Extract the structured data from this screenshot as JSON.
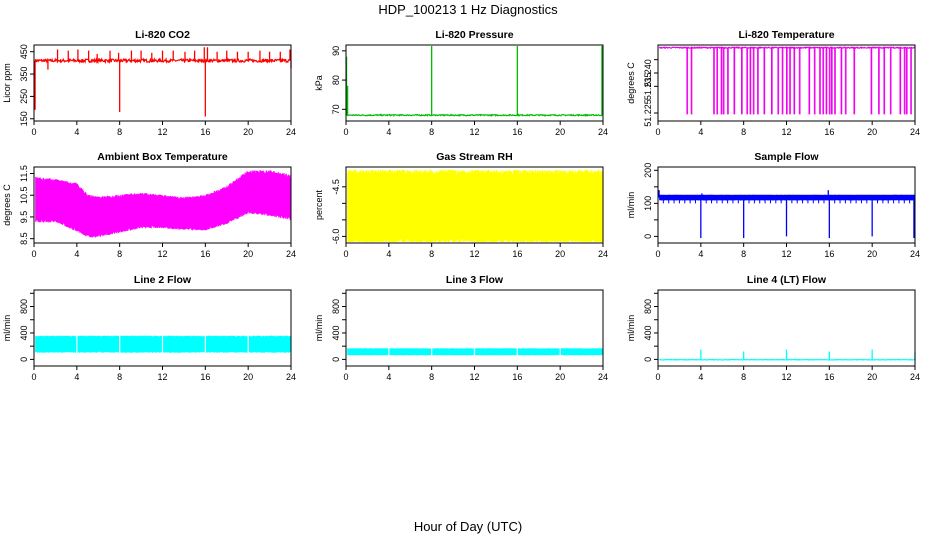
{
  "figure": {
    "title": "HDP_100213  1 Hz Diagnostics",
    "xlabel": "Hour of Day (UTC)"
  },
  "chart_data": [
    {
      "type": "line",
      "title": "Li-820 CO2",
      "ylabel": "Licor ppm",
      "color": "#ff0000",
      "xlim": [
        0,
        24
      ],
      "ylim": [
        140,
        480
      ],
      "xticks": [
        0,
        4,
        8,
        12,
        16,
        20,
        24
      ],
      "yticks": [
        150,
        250,
        350,
        450
      ],
      "baseline": 410,
      "noise": 7,
      "spikes": [
        [
          0.05,
          200
        ],
        [
          0.1,
          190
        ],
        [
          1.3,
          370
        ],
        [
          2.2,
          460
        ],
        [
          3.2,
          455
        ],
        [
          4.1,
          460
        ],
        [
          5.1,
          455
        ],
        [
          5.9,
          440
        ],
        [
          7.1,
          455
        ],
        [
          7.9,
          445
        ],
        [
          8.0,
          180
        ],
        [
          9.1,
          455
        ],
        [
          10.0,
          455
        ],
        [
          11.0,
          445
        ],
        [
          12.0,
          455
        ],
        [
          13.0,
          455
        ],
        [
          14.1,
          450
        ],
        [
          15.0,
          455
        ],
        [
          15.9,
          470
        ],
        [
          16.0,
          160
        ],
        [
          16.2,
          470
        ],
        [
          17.1,
          450
        ],
        [
          18.0,
          455
        ],
        [
          19.0,
          450
        ],
        [
          20.0,
          450
        ],
        [
          21.1,
          455
        ],
        [
          22.0,
          450
        ],
        [
          23.0,
          450
        ],
        [
          23.9,
          460
        ],
        [
          24.0,
          375
        ]
      ]
    },
    {
      "type": "line",
      "title": "Li-820 Pressure",
      "ylabel": "kPa",
      "color": "#00bb00",
      "xlim": [
        0,
        24
      ],
      "ylim": [
        66,
        92
      ],
      "xticks": [
        0,
        4,
        8,
        12,
        16,
        20,
        24
      ],
      "yticks": [
        70,
        80,
        90
      ],
      "baseline": 68,
      "noise": 0.2,
      "spikes": [
        [
          0.05,
          88
        ],
        [
          0.15,
          78
        ],
        [
          8.0,
          92
        ],
        [
          16.0,
          92
        ],
        [
          23.9,
          92
        ]
      ]
    },
    {
      "type": "line",
      "title": "Li-820 Temperature",
      "ylabel": "degrees C",
      "color": "#ee00ee",
      "xlim": [
        0,
        24
      ],
      "ylim": [
        51.222,
        51.2505
      ],
      "xticks": [
        0,
        4,
        8,
        12,
        16,
        20,
        24
      ],
      "yticks": [
        51.225,
        51.235,
        51.24,
        51.245
      ],
      "yticklabels": [
        "51.225",
        "51.235",
        "51.240",
        ""
      ],
      "baseline": 51.2495,
      "noise": 0.0002,
      "drops": [
        2.7,
        3.1,
        5.2,
        5.5,
        5.9,
        6.1,
        6.5,
        7.1,
        7.8,
        8.3,
        8.6,
        8.9,
        9.3,
        9.9,
        10.6,
        11.2,
        11.6,
        12.0,
        12.3,
        12.7,
        13.2,
        14.1,
        14.6,
        15.1,
        15.4,
        15.7,
        16.0,
        16.2,
        16.5,
        17.1,
        17.5,
        18.3,
        19.9,
        20.6,
        21.1,
        21.7,
        22.6,
        23.0,
        23.2,
        23.6
      ],
      "drop_level": 51.2245
    },
    {
      "type": "line",
      "title": "Ambient Box Temperature",
      "ylabel": "degrees C",
      "color": "#ff00ff",
      "xlim": [
        0,
        24
      ],
      "ylim": [
        8.3,
        11.8
      ],
      "xticks": [
        0,
        4,
        8,
        12,
        16,
        20,
        24
      ],
      "yticks": [
        8.5,
        9.5,
        10.5,
        11.5
      ],
      "band": {
        "x": [
          0,
          2,
          4,
          5,
          6,
          8,
          10,
          12,
          14,
          16,
          18,
          20,
          22,
          24
        ],
        "lower": [
          9.4,
          9.4,
          9.0,
          8.7,
          8.7,
          8.9,
          9.1,
          9.1,
          9.0,
          9.0,
          9.3,
          9.8,
          9.7,
          9.5
        ],
        "upper": [
          11.2,
          11.1,
          10.9,
          10.4,
          10.3,
          10.4,
          10.5,
          10.4,
          10.3,
          10.4,
          10.8,
          11.5,
          11.5,
          11.3
        ]
      }
    },
    {
      "type": "line",
      "title": "Gas Stream RH",
      "ylabel": "percent",
      "color": "#ffff00",
      "xlim": [
        0,
        24
      ],
      "ylim": [
        -6.2,
        -3.9
      ],
      "xticks": [
        0,
        4,
        8,
        12,
        16,
        20,
        24
      ],
      "yticks": [
        -6.0,
        -5.5,
        -5.0,
        -4.5
      ],
      "yticklabels": [
        "-6.0",
        "",
        "",
        "-4.5"
      ],
      "band": {
        "x": [
          0,
          24
        ],
        "lower": [
          -6.05,
          -6.05
        ],
        "upper": [
          -4.15,
          -4.15
        ]
      }
    },
    {
      "type": "line",
      "title": "Sample Flow",
      "ylabel": "ml/min",
      "color": "#0000ff",
      "xlim": [
        0,
        24
      ],
      "ylim": [
        -20,
        210
      ],
      "xticks": [
        0,
        4,
        8,
        12,
        16,
        20,
        24
      ],
      "yticks": [
        0,
        50,
        100,
        150,
        200
      ],
      "yticklabels": [
        "0",
        "",
        "100",
        "",
        "200"
      ],
      "band": {
        "x": [
          0,
          24
        ],
        "lower": [
          110,
          110
        ],
        "upper": [
          125,
          125
        ]
      },
      "spikes": [
        [
          0.1,
          140
        ],
        [
          4.0,
          -5
        ],
        [
          4.1,
          130
        ],
        [
          8.0,
          -5
        ],
        [
          12.0,
          0
        ],
        [
          15.9,
          140
        ],
        [
          16.0,
          -5
        ],
        [
          20.0,
          0
        ],
        [
          23.9,
          -5
        ]
      ],
      "dips": [
        0.5,
        1.0,
        1.5,
        2.0,
        2.5,
        3.0,
        3.5,
        4.5,
        5.0,
        5.5,
        6.0,
        6.5,
        7.0,
        7.5,
        8.5,
        9.0,
        9.5,
        10.0,
        10.5,
        11.0,
        11.5,
        12.5,
        13.0,
        13.5,
        14.0,
        14.5,
        15.0,
        15.5,
        16.5,
        17.0,
        17.5,
        18.0,
        18.5,
        19.0,
        19.5,
        20.5,
        21.0,
        21.5,
        22.0,
        22.5,
        23.0,
        23.5
      ],
      "dip_level": 100
    },
    {
      "type": "line",
      "title": "Line 2 Flow",
      "ylabel": "ml/min",
      "color": "#00ffff",
      "xlim": [
        0,
        24
      ],
      "ylim": [
        -100,
        1050
      ],
      "xticks": [
        0,
        4,
        8,
        12,
        16,
        20,
        24
      ],
      "yticks": [
        0,
        200,
        400,
        600,
        800,
        1000
      ],
      "yticklabels": [
        "0",
        "",
        "400",
        "",
        "800",
        ""
      ],
      "band": {
        "x": [
          0,
          24
        ],
        "lower": [
          120,
          120
        ],
        "upper": [
          340,
          340
        ]
      },
      "gaps": [
        4.0,
        8.0,
        12.0,
        16.0,
        20.0
      ]
    },
    {
      "type": "line",
      "title": "Line 3 Flow",
      "ylabel": "ml/min",
      "color": "#00ffff",
      "xlim": [
        0,
        24
      ],
      "ylim": [
        -100,
        1050
      ],
      "xticks": [
        0,
        4,
        8,
        12,
        16,
        20,
        24
      ],
      "yticks": [
        0,
        200,
        400,
        600,
        800,
        1000
      ],
      "yticklabels": [
        "0",
        "",
        "400",
        "",
        "800",
        ""
      ],
      "band": {
        "x": [
          0,
          24
        ],
        "lower": [
          70,
          70
        ],
        "upper": [
          160,
          160
        ]
      },
      "gaps": [
        4.0,
        8.0,
        12.0,
        16.0,
        20.0
      ]
    },
    {
      "type": "line",
      "title": "Line 4 (LT) Flow",
      "ylabel": "ml/min",
      "color": "#00ffff",
      "xlim": [
        0,
        24
      ],
      "ylim": [
        -100,
        1050
      ],
      "xticks": [
        0,
        4,
        8,
        12,
        16,
        20,
        24
      ],
      "yticks": [
        0,
        200,
        400,
        600,
        800,
        1000
      ],
      "yticklabels": [
        "0",
        "",
        "400",
        "",
        "800",
        ""
      ],
      "baseline": -5,
      "noise": 4,
      "spikes": [
        [
          4.0,
          150
        ],
        [
          8.0,
          120
        ],
        [
          12.0,
          150
        ],
        [
          16.0,
          120
        ],
        [
          20.0,
          150
        ],
        [
          24.0,
          110
        ]
      ]
    }
  ]
}
